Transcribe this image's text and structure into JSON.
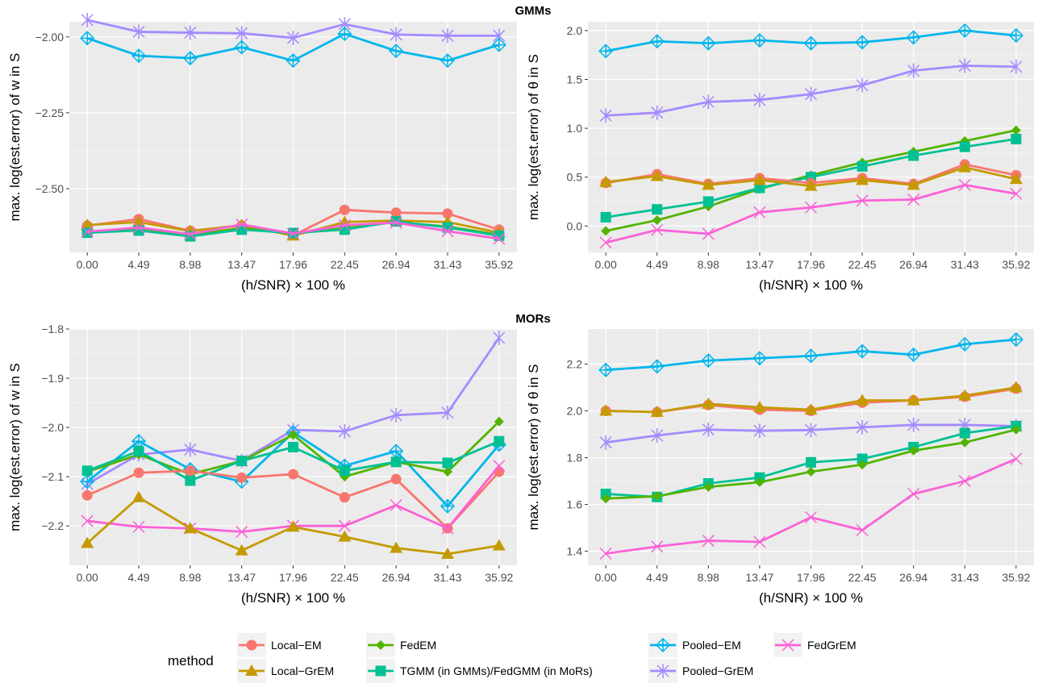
{
  "strips": [
    "GMMs",
    "MORs"
  ],
  "legend": {
    "title": "method",
    "entries": [
      {
        "name": "Local−EM",
        "color": "#F8766D",
        "shape": "circle"
      },
      {
        "name": "Local−GrEM",
        "color": "#C49A00",
        "shape": "triangle"
      },
      {
        "name": "FedEM",
        "color": "#53B400",
        "shape": "diamond"
      },
      {
        "name": "TGMM (in GMMs)/FedGMM (in MoRs)",
        "color": "#00C094",
        "shape": "square"
      },
      {
        "name": "Pooled−EM",
        "color": "#00B6EB",
        "shape": "diamond-plus"
      },
      {
        "name": "Pooled−GrEM",
        "color": "#A58AFF",
        "shape": "asterisk"
      },
      {
        "name": "FedGrEM",
        "color": "#FB61D7",
        "shape": "cross"
      }
    ]
  },
  "chart_data": [
    {
      "type": "line",
      "group": "GMMs",
      "xlabel": "(h/SNR) × 100 %",
      "ylabel": "max. log(est.error) of w in S",
      "categories": [
        "0.00",
        "4.49",
        "8.98",
        "13.47",
        "17.96",
        "22.45",
        "26.94",
        "31.43",
        "35.92"
      ],
      "yticks": [
        -2.5,
        -2.25,
        -2.0
      ],
      "ytick_labels": [
        "−2.50",
        "−2.25",
        "−2.00"
      ],
      "ylim": [
        -2.71,
        -1.95
      ],
      "series": [
        {
          "name": "Pooled−GrEM",
          "values": [
            -1.944,
            -1.983,
            -1.986,
            -1.988,
            -2.003,
            -1.958,
            -1.992,
            -1.996,
            -1.996
          ]
        },
        {
          "name": "Pooled−EM",
          "values": [
            -2.004,
            -2.062,
            -2.07,
            -2.034,
            -2.078,
            -1.99,
            -2.046,
            -2.078,
            -2.026
          ]
        },
        {
          "name": "Local−EM",
          "values": [
            -2.622,
            -2.6,
            -2.639,
            -2.622,
            -2.654,
            -2.57,
            -2.579,
            -2.582,
            -2.635
          ]
        },
        {
          "name": "Local−GrEM",
          "values": [
            -2.62,
            -2.61,
            -2.64,
            -2.62,
            -2.655,
            -2.61,
            -2.605,
            -2.61,
            -2.645
          ]
        },
        {
          "name": "FedEM",
          "values": [
            -2.645,
            -2.632,
            -2.652,
            -2.63,
            -2.648,
            -2.63,
            -2.61,
            -2.625,
            -2.652
          ]
        },
        {
          "name": "TGMM (in GMMs)/FedGMM (in MoRs)",
          "values": [
            -2.645,
            -2.638,
            -2.657,
            -2.635,
            -2.646,
            -2.635,
            -2.608,
            -2.628,
            -2.655
          ]
        },
        {
          "name": "FedGrEM",
          "values": [
            -2.642,
            -2.628,
            -2.65,
            -2.618,
            -2.648,
            -2.62,
            -2.612,
            -2.64,
            -2.665
          ]
        }
      ]
    },
    {
      "type": "line",
      "group": "GMMs",
      "xlabel": "(h/SNR) × 100 %",
      "ylabel": "max. log(est.error) of θ in S",
      "categories": [
        "0.00",
        "4.49",
        "8.98",
        "13.47",
        "17.96",
        "22.45",
        "26.94",
        "31.43",
        "35.92"
      ],
      "yticks": [
        0.0,
        0.5,
        1.0,
        1.5,
        2.0
      ],
      "ytick_labels": [
        "0.0",
        "0.5",
        "1.0",
        "1.5",
        "2.0"
      ],
      "ylim": [
        -0.27,
        2.09
      ],
      "series": [
        {
          "name": "Pooled−EM",
          "values": [
            1.79,
            1.89,
            1.87,
            1.9,
            1.87,
            1.88,
            1.93,
            2.0,
            1.95
          ]
        },
        {
          "name": "Pooled−GrEM",
          "values": [
            1.13,
            1.16,
            1.27,
            1.29,
            1.35,
            1.44,
            1.59,
            1.64,
            1.63
          ]
        },
        {
          "name": "FedEM",
          "values": [
            -0.05,
            0.06,
            0.2,
            0.38,
            0.52,
            0.65,
            0.76,
            0.87,
            0.98
          ]
        },
        {
          "name": "TGMM (in GMMs)/FedGMM (in MoRs)",
          "values": [
            0.09,
            0.17,
            0.25,
            0.39,
            0.5,
            0.61,
            0.72,
            0.81,
            0.89
          ]
        },
        {
          "name": "Local−EM",
          "values": [
            0.44,
            0.53,
            0.43,
            0.49,
            0.44,
            0.49,
            0.43,
            0.63,
            0.52
          ]
        },
        {
          "name": "Local−GrEM",
          "values": [
            0.45,
            0.51,
            0.42,
            0.47,
            0.41,
            0.47,
            0.42,
            0.6,
            0.48
          ]
        },
        {
          "name": "FedGrEM",
          "values": [
            -0.17,
            -0.04,
            -0.08,
            0.14,
            0.19,
            0.26,
            0.27,
            0.42,
            0.33
          ]
        }
      ]
    },
    {
      "type": "line",
      "group": "MORs",
      "xlabel": "(h/SNR) × 100 %",
      "ylabel": "max. log(est.error) of w in S",
      "categories": [
        "0.00",
        "4.49",
        "8.98",
        "13.47",
        "17.96",
        "22.45",
        "26.94",
        "31.43",
        "35.92"
      ],
      "yticks": [
        -2.2,
        -2.1,
        -2.0,
        -1.9,
        -1.8
      ],
      "ytick_labels": [
        "−2.2",
        "−2.1",
        "−2.0",
        "−1.9",
        "−1.8"
      ],
      "ylim": [
        -2.28,
        -1.8
      ],
      "series": [
        {
          "name": "Pooled−GrEM",
          "values": [
            -2.115,
            -2.055,
            -2.045,
            -2.068,
            -2.005,
            -2.008,
            -1.975,
            -1.97,
            -1.818
          ]
        },
        {
          "name": "Pooled−EM",
          "values": [
            -2.11,
            -2.028,
            -2.085,
            -2.11,
            -2.01,
            -2.078,
            -2.048,
            -2.16,
            -2.035
          ]
        },
        {
          "name": "FedEM",
          "values": [
            -2.09,
            -2.055,
            -2.095,
            -2.068,
            -2.015,
            -2.1,
            -2.07,
            -2.09,
            -1.988
          ]
        },
        {
          "name": "TGMM (in GMMs)/FedGMM (in MoRs)",
          "values": [
            -2.088,
            -2.048,
            -2.108,
            -2.068,
            -2.04,
            -2.088,
            -2.07,
            -2.072,
            -2.028
          ]
        },
        {
          "name": "Local−EM",
          "values": [
            -2.138,
            -2.092,
            -2.088,
            -2.102,
            -2.095,
            -2.142,
            -2.105,
            -2.205,
            -2.09
          ]
        },
        {
          "name": "FedGrEM",
          "values": [
            -2.19,
            -2.202,
            -2.205,
            -2.212,
            -2.2,
            -2.2,
            -2.158,
            -2.205,
            -2.078
          ]
        },
        {
          "name": "Local−GrEM",
          "values": [
            -2.235,
            -2.142,
            -2.205,
            -2.25,
            -2.202,
            -2.222,
            -2.245,
            -2.257,
            -2.24
          ]
        }
      ]
    },
    {
      "type": "line",
      "group": "MORs",
      "xlabel": "(h/SNR) × 100 %",
      "ylabel": "max. log(est.error) of θ in S",
      "categories": [
        "0.00",
        "4.49",
        "8.98",
        "13.47",
        "17.96",
        "22.45",
        "26.94",
        "31.43",
        "35.92"
      ],
      "yticks": [
        1.4,
        1.6,
        1.8,
        2.0,
        2.2
      ],
      "ytick_labels": [
        "1.4",
        "1.6",
        "1.8",
        "2.0",
        "2.2"
      ],
      "ylim": [
        1.34,
        2.35
      ],
      "series": [
        {
          "name": "Pooled−EM",
          "values": [
            2.175,
            2.19,
            2.215,
            2.225,
            2.235,
            2.255,
            2.24,
            2.285,
            2.305
          ]
        },
        {
          "name": "Local−EM",
          "values": [
            2.0,
            1.995,
            2.025,
            2.005,
            2.0,
            2.035,
            2.045,
            2.06,
            2.095
          ]
        },
        {
          "name": "Local−GrEM",
          "values": [
            2.0,
            1.995,
            2.03,
            2.015,
            2.005,
            2.045,
            2.045,
            2.065,
            2.1
          ]
        },
        {
          "name": "Pooled−GrEM",
          "values": [
            1.865,
            1.895,
            1.92,
            1.915,
            1.918,
            1.93,
            1.94,
            1.94,
            1.935
          ]
        },
        {
          "name": "TGMM (in GMMs)/FedGMM (in MoRs)",
          "values": [
            1.645,
            1.632,
            1.69,
            1.715,
            1.78,
            1.795,
            1.845,
            1.905,
            1.935
          ]
        },
        {
          "name": "FedEM",
          "values": [
            1.625,
            1.635,
            1.675,
            1.695,
            1.74,
            1.77,
            1.83,
            1.865,
            1.92
          ]
        },
        {
          "name": "FedGrEM",
          "values": [
            1.39,
            1.42,
            1.445,
            1.44,
            1.545,
            1.49,
            1.645,
            1.7,
            1.795
          ]
        }
      ]
    }
  ]
}
